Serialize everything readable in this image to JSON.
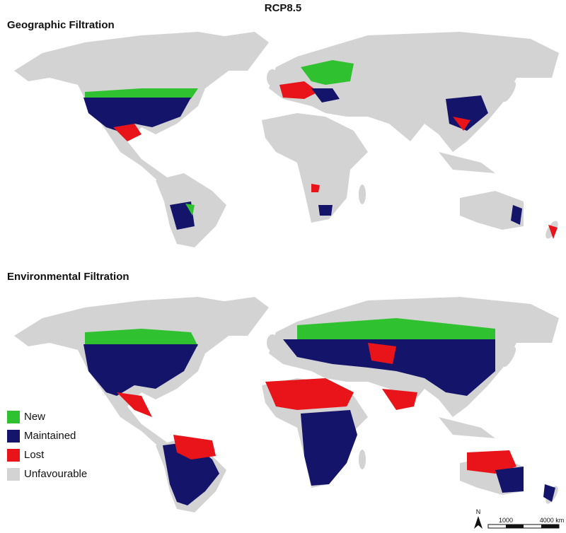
{
  "title": "RCP8.5",
  "panels": [
    {
      "title": "Geographic Filtration"
    },
    {
      "title": "Environmental Filtration"
    }
  ],
  "legend": [
    {
      "label": "New",
      "color": "#2fc12f"
    },
    {
      "label": "Maintained",
      "color": "#15146b"
    },
    {
      "label": "Lost",
      "color": "#e8141a"
    },
    {
      "label": "Unfavourable",
      "color": "#d3d3d3"
    }
  ],
  "scale_bar": {
    "north": "N",
    "labels": [
      "1000",
      "4000 km"
    ]
  }
}
